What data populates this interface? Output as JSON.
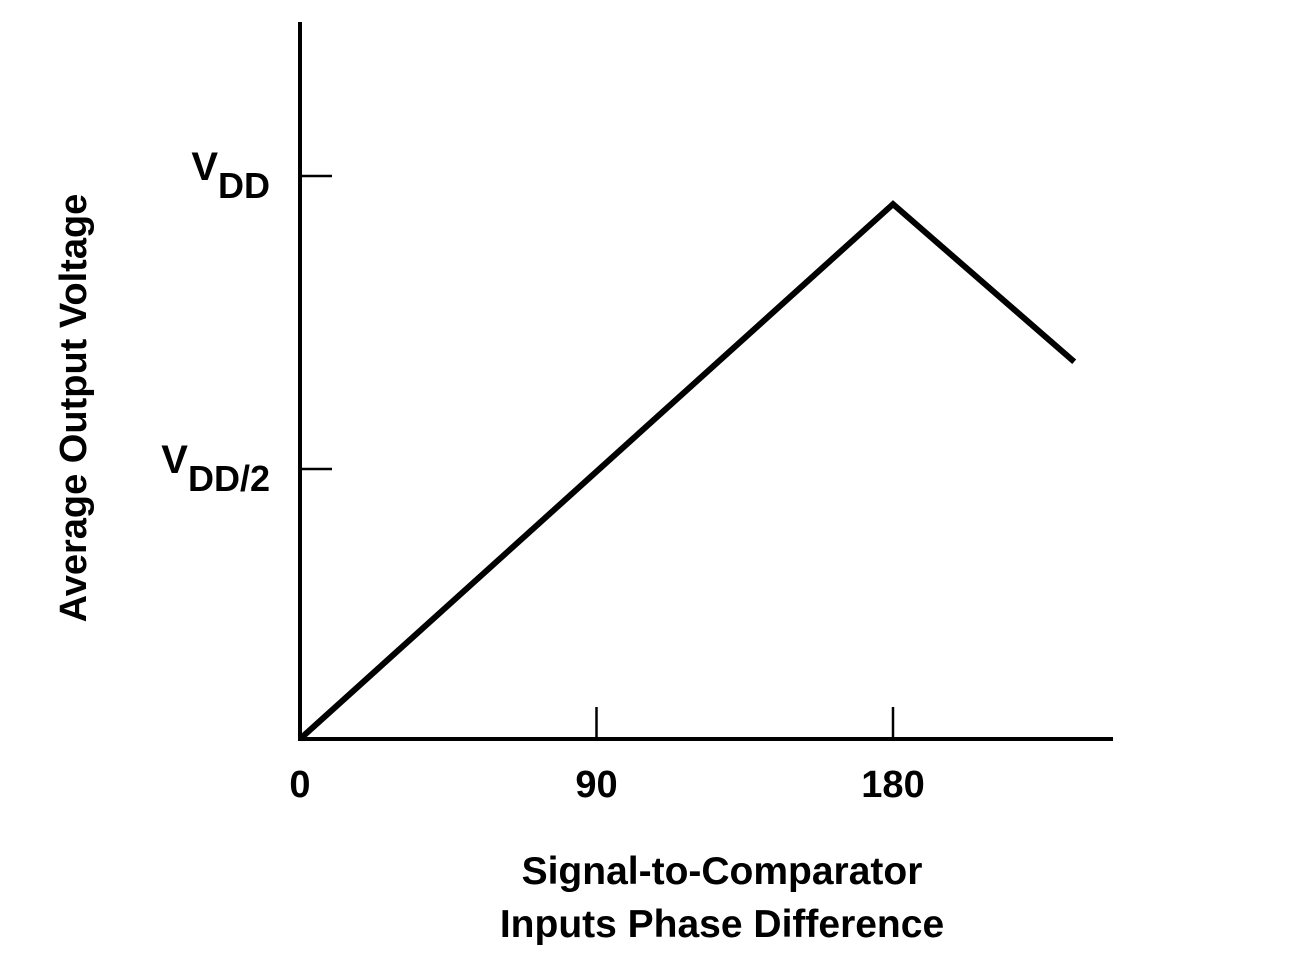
{
  "chart_data": {
    "type": "line",
    "title": "",
    "xlabel_lines": [
      "Signal-to-Comparator",
      "Inputs Phase Difference"
    ],
    "ylabel": "Average Output Voltage",
    "x_ticks": [
      {
        "value": 0,
        "label": "0"
      },
      {
        "value": 90,
        "label": "90"
      },
      {
        "value": 180,
        "label": "180"
      }
    ],
    "y_ticks": [
      {
        "value": 0.5,
        "base": "V",
        "sub": "DD/2"
      },
      {
        "value": 1.0,
        "base": "V",
        "sub": "DD"
      }
    ],
    "xlim": [
      0,
      248
    ],
    "ylim": [
      0,
      1.28
    ],
    "grid": false,
    "series": [
      {
        "x": [
          0,
          180,
          235
        ],
        "y": [
          0,
          0.95,
          0.67
        ]
      }
    ],
    "colors": {
      "line": "#000000",
      "axis": "#000000"
    }
  }
}
